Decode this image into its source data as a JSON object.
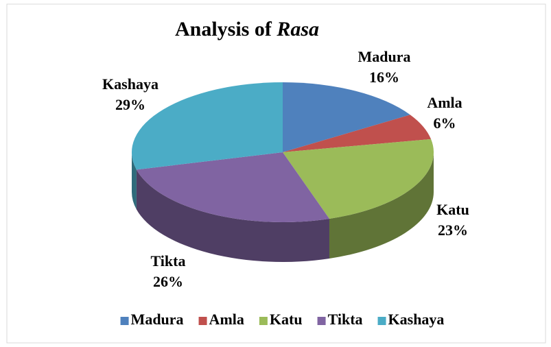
{
  "chart_data": {
    "type": "pie3d",
    "title": {
      "text": "Analysis of",
      "italic": "Rasa"
    },
    "categories": [
      "Madura",
      "Amla",
      "Katu",
      "Tikta",
      "Kashaya"
    ],
    "values": [
      16,
      6,
      23,
      26,
      29
    ],
    "value_labels": [
      "16%",
      "6%",
      "23%",
      "26%",
      "29%"
    ],
    "colors": [
      "#4f81bd",
      "#c0504d",
      "#9bbb59",
      "#8064a2",
      "#4bacc6"
    ],
    "legend": "bottom"
  }
}
